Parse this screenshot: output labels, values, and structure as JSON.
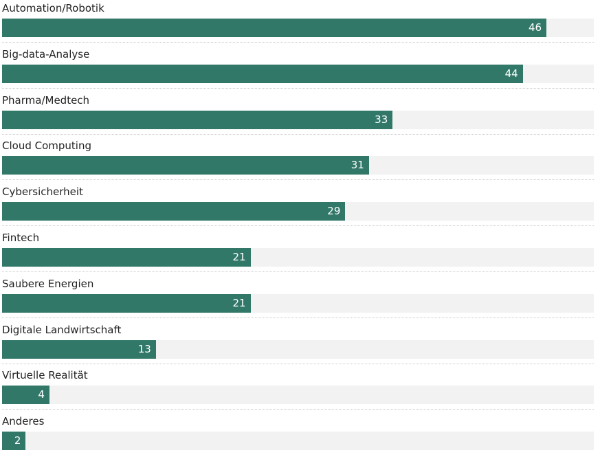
{
  "chart_data": {
    "type": "bar",
    "orientation": "horizontal",
    "categories": [
      "Automation/Robotik",
      "Big-data-Analyse",
      "Pharma/Medtech",
      "Cloud Computing",
      "Cybersicherheit",
      "Fintech",
      "Saubere Energien",
      "Digitale Landwirtschaft",
      "Virtuelle Realität",
      "Anderes"
    ],
    "values": [
      46,
      44,
      33,
      31,
      29,
      21,
      21,
      13,
      4,
      2
    ],
    "xlim": [
      0,
      50
    ],
    "grid": false,
    "legend": "none",
    "colors": {
      "bar": "#327869",
      "track": "#f2f2f2",
      "label_text": "#222222",
      "value_text": "#ffffff"
    }
  }
}
